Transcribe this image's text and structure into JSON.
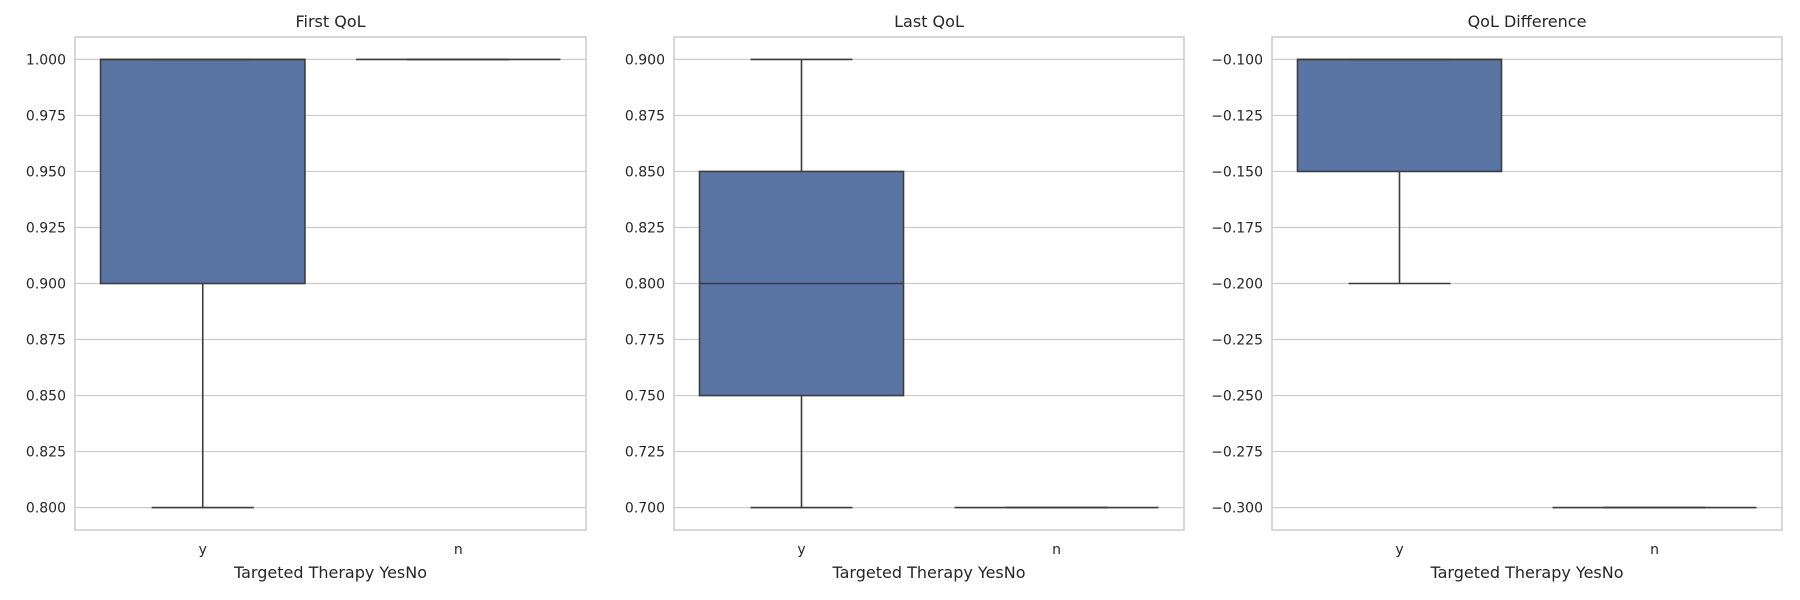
{
  "colors": {
    "box_fill": "#5975a4",
    "box_edge": "#3d3d3d",
    "grid": "#cccccc",
    "frame": "#cccccc",
    "text": "#262626"
  },
  "chart_data": [
    {
      "type": "box",
      "title": "First QoL",
      "xlabel": "Targeted Therapy YesNo",
      "ylabel": "",
      "categories": [
        "y",
        "n"
      ],
      "ylim": [
        0.79,
        1.01
      ],
      "yticks": [
        0.8,
        0.825,
        0.85,
        0.875,
        0.9,
        0.925,
        0.95,
        0.975,
        1.0
      ],
      "ytick_labels": [
        "0.800",
        "0.825",
        "0.850",
        "0.875",
        "0.900",
        "0.925",
        "0.950",
        "0.975",
        "1.000"
      ],
      "grid": true,
      "boxes": [
        {
          "category": "y",
          "whisker_low": 0.8,
          "q1": 0.9,
          "median": 1.0,
          "q3": 1.0,
          "whisker_high": 1.0
        },
        {
          "category": "n",
          "whisker_low": 1.0,
          "q1": 1.0,
          "median": 1.0,
          "q3": 1.0,
          "whisker_high": 1.0
        }
      ]
    },
    {
      "type": "box",
      "title": "Last QoL",
      "xlabel": "Targeted Therapy YesNo",
      "ylabel": "",
      "categories": [
        "y",
        "n"
      ],
      "ylim": [
        0.69,
        0.91
      ],
      "yticks": [
        0.7,
        0.725,
        0.75,
        0.775,
        0.8,
        0.825,
        0.85,
        0.875,
        0.9
      ],
      "ytick_labels": [
        "0.700",
        "0.725",
        "0.750",
        "0.775",
        "0.800",
        "0.825",
        "0.850",
        "0.875",
        "0.900"
      ],
      "grid": true,
      "boxes": [
        {
          "category": "y",
          "whisker_low": 0.7,
          "q1": 0.75,
          "median": 0.8,
          "q3": 0.85,
          "whisker_high": 0.9
        },
        {
          "category": "n",
          "whisker_low": 0.7,
          "q1": 0.7,
          "median": 0.7,
          "q3": 0.7,
          "whisker_high": 0.7
        }
      ]
    },
    {
      "type": "box",
      "title": "QoL Difference",
      "xlabel": "Targeted Therapy YesNo",
      "ylabel": "",
      "categories": [
        "y",
        "n"
      ],
      "ylim": [
        -0.31,
        -0.09
      ],
      "yticks": [
        -0.3,
        -0.275,
        -0.25,
        -0.225,
        -0.2,
        -0.175,
        -0.15,
        -0.125,
        -0.1
      ],
      "ytick_labels": [
        "−0.300",
        "−0.275",
        "−0.250",
        "−0.225",
        "−0.200",
        "−0.175",
        "−0.150",
        "−0.125",
        "−0.100"
      ],
      "grid": true,
      "boxes": [
        {
          "category": "y",
          "whisker_low": -0.2,
          "q1": -0.15,
          "median": -0.1,
          "q3": -0.1,
          "whisker_high": -0.1
        },
        {
          "category": "n",
          "whisker_low": -0.3,
          "q1": -0.3,
          "median": -0.3,
          "q3": -0.3,
          "whisker_high": -0.3
        }
      ]
    }
  ]
}
